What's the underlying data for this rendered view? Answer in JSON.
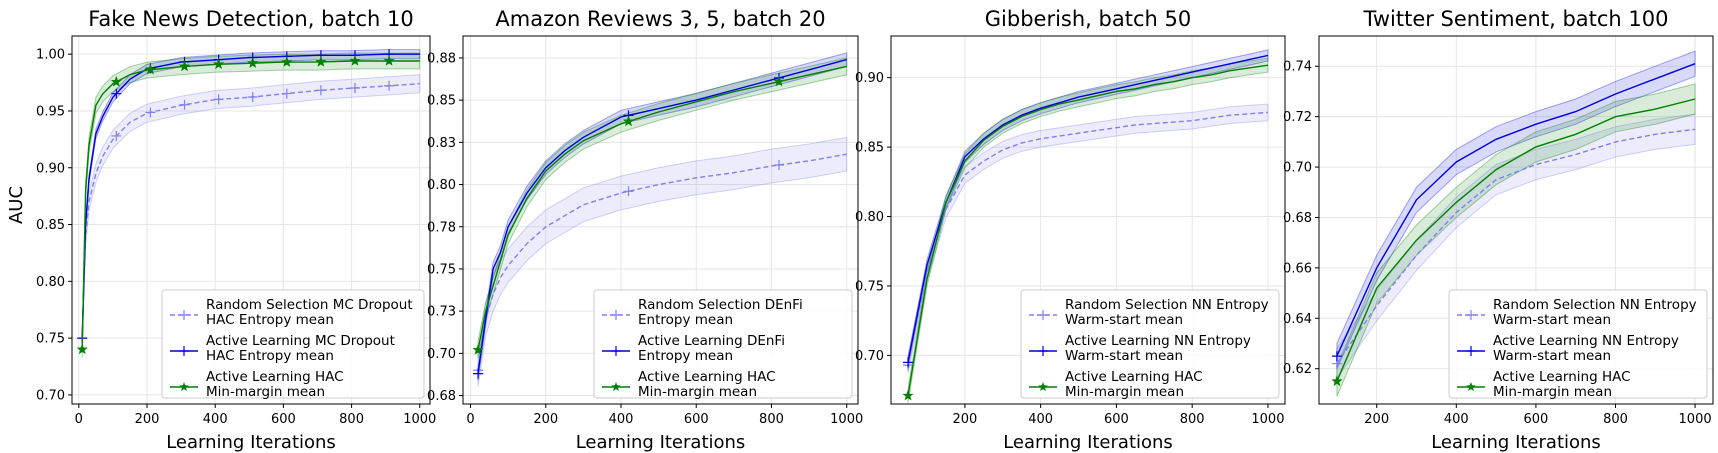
{
  "figure": {
    "ylabel": "AUC"
  },
  "chart_data": [
    {
      "type": "line",
      "title": "Fake News Detection, batch 10",
      "xlabel": "Learning Iterations",
      "ylabel": "AUC",
      "xlim": [
        -20,
        1030
      ],
      "ylim": [
        0.692,
        1.016
      ],
      "xticks": [
        0,
        200,
        400,
        600,
        800,
        1000
      ],
      "yticks": [
        0.7,
        0.75,
        0.8,
        0.85,
        0.9,
        0.95,
        1.0
      ],
      "ytick_labels": [
        "0.70",
        "0.75",
        "0.80",
        "0.85",
        "0.90",
        "0.95",
        "1.00"
      ],
      "grid": true,
      "legend_position": "lower right",
      "series": [
        {
          "name": "Random Selection MC Dropout\nHAC Entropy mean",
          "color": "#8080ee",
          "style": "dashed",
          "marker": "plus",
          "band": 0.008,
          "x": [
            10,
            20,
            30,
            50,
            70,
            100,
            150,
            200,
            300,
            400,
            500,
            600,
            700,
            800,
            900,
            1000
          ],
          "y": [
            0.75,
            0.84,
            0.87,
            0.895,
            0.91,
            0.925,
            0.94,
            0.948,
            0.955,
            0.96,
            0.962,
            0.965,
            0.968,
            0.97,
            0.972,
            0.974
          ],
          "marker_x": [
            10,
            110,
            210,
            310,
            410,
            510,
            610,
            710,
            810,
            910
          ]
        },
        {
          "name": "Active Learning MC Dropout\nHAC Entropy mean",
          "color": "#0000dd",
          "style": "solid",
          "marker": "plus",
          "band": 0.004,
          "x": [
            10,
            20,
            30,
            50,
            70,
            100,
            150,
            200,
            300,
            400,
            500,
            600,
            700,
            800,
            900,
            1000
          ],
          "y": [
            0.75,
            0.85,
            0.89,
            0.93,
            0.945,
            0.962,
            0.978,
            0.987,
            0.993,
            0.995,
            0.997,
            0.998,
            0.999,
            0.999,
            1.0,
            1.0
          ],
          "marker_x": [
            10,
            110,
            210,
            310,
            410,
            510,
            610,
            710,
            810,
            910
          ]
        },
        {
          "name": "Active Learning HAC\nMin-margin mean",
          "color": "#008000",
          "style": "solid",
          "marker": "star",
          "band": 0.007,
          "x": [
            10,
            20,
            30,
            50,
            70,
            100,
            150,
            200,
            300,
            400,
            500,
            600,
            700,
            800,
            900,
            1000
          ],
          "y": [
            0.74,
            0.88,
            0.92,
            0.955,
            0.965,
            0.974,
            0.982,
            0.986,
            0.989,
            0.991,
            0.992,
            0.993,
            0.993,
            0.994,
            0.994,
            0.994
          ],
          "marker_x": [
            10,
            110,
            210,
            310,
            410,
            510,
            610,
            710,
            810,
            910
          ]
        }
      ]
    },
    {
      "type": "line",
      "title": "Amazon Reviews 3, 5, batch 20",
      "xlabel": "Learning Iterations",
      "ylabel": "",
      "xlim": [
        -20,
        1030
      ],
      "ylim": [
        0.67,
        0.888
      ],
      "xticks": [
        0,
        200,
        400,
        600,
        800,
        1000
      ],
      "yticks": [
        0.675,
        0.7,
        0.725,
        0.75,
        0.775,
        0.8,
        0.825,
        0.85,
        0.875
      ],
      "ytick_labels": [
        "0.68",
        "0.70",
        "0.73",
        "0.75",
        "0.78",
        "0.80",
        "0.83",
        "0.85",
        "0.88"
      ],
      "grid": true,
      "legend_position": "lower right",
      "series": [
        {
          "name": "Random Selection DEnFi\nEntropy mean",
          "color": "#8080ee",
          "style": "dashed",
          "marker": "plus",
          "band": 0.01,
          "x": [
            20,
            40,
            60,
            80,
            100,
            150,
            200,
            300,
            400,
            500,
            600,
            700,
            800,
            900,
            1000
          ],
          "y": [
            0.69,
            0.72,
            0.735,
            0.745,
            0.752,
            0.765,
            0.775,
            0.788,
            0.795,
            0.8,
            0.804,
            0.807,
            0.811,
            0.814,
            0.818
          ],
          "marker_x": [
            20,
            420,
            820
          ]
        },
        {
          "name": "Active Learning DEnFi\nEntropy mean",
          "color": "#0000dd",
          "style": "solid",
          "marker": "plus",
          "band": 0.004,
          "x": [
            20,
            40,
            60,
            80,
            100,
            150,
            200,
            250,
            300,
            400,
            500,
            600,
            700,
            800,
            900,
            1000
          ],
          "y": [
            0.688,
            0.72,
            0.75,
            0.76,
            0.775,
            0.795,
            0.81,
            0.82,
            0.828,
            0.84,
            0.845,
            0.85,
            0.856,
            0.862,
            0.868,
            0.874
          ],
          "marker_x": [
            20,
            420,
            820
          ]
        },
        {
          "name": "Active Learning HAC\nMin-margin mean",
          "color": "#008000",
          "style": "solid",
          "marker": "star",
          "band": 0.005,
          "x": [
            20,
            40,
            60,
            80,
            100,
            150,
            200,
            250,
            300,
            400,
            500,
            600,
            700,
            800,
            900,
            1000
          ],
          "y": [
            0.702,
            0.725,
            0.74,
            0.755,
            0.77,
            0.792,
            0.808,
            0.818,
            0.826,
            0.836,
            0.843,
            0.849,
            0.855,
            0.86,
            0.865,
            0.87
          ],
          "marker_x": [
            20,
            420,
            820
          ]
        }
      ]
    },
    {
      "type": "line",
      "title": "Gibberish, batch 50",
      "xlabel": "Learning Iterations",
      "ylabel": "",
      "xlim": [
        5,
        1045
      ],
      "ylim": [
        0.665,
        0.93
      ],
      "xticks": [
        200,
        400,
        600,
        800,
        1000
      ],
      "yticks": [
        0.7,
        0.75,
        0.8,
        0.85,
        0.9
      ],
      "ytick_labels": [
        "0.70",
        "0.75",
        "0.80",
        "0.85",
        "0.90"
      ],
      "grid": true,
      "legend_position": "lower right",
      "series": [
        {
          "name": "Random Selection NN Entropy\nWarm-start mean",
          "color": "#8080ee",
          "style": "dashed",
          "marker": "plus",
          "band": 0.006,
          "x": [
            50,
            100,
            150,
            200,
            250,
            300,
            350,
            400,
            450,
            500,
            550,
            600,
            650,
            700,
            750,
            800,
            850,
            900,
            950,
            1000
          ],
          "y": [
            0.693,
            0.76,
            0.805,
            0.83,
            0.84,
            0.848,
            0.853,
            0.856,
            0.858,
            0.86,
            0.862,
            0.864,
            0.866,
            0.867,
            0.868,
            0.869,
            0.871,
            0.873,
            0.874,
            0.875
          ],
          "marker_x": [
            50
          ]
        },
        {
          "name": "Active Learning NN Entropy\nWarm-start mean",
          "color": "#0000dd",
          "style": "solid",
          "marker": "plus",
          "band": 0.004,
          "x": [
            50,
            100,
            150,
            200,
            250,
            300,
            350,
            400,
            450,
            500,
            550,
            600,
            650,
            700,
            750,
            800,
            850,
            900,
            950,
            1000
          ],
          "y": [
            0.695,
            0.765,
            0.81,
            0.843,
            0.856,
            0.866,
            0.873,
            0.878,
            0.882,
            0.886,
            0.889,
            0.892,
            0.895,
            0.898,
            0.901,
            0.904,
            0.907,
            0.91,
            0.913,
            0.916
          ],
          "marker_x": [
            50
          ]
        },
        {
          "name": "Active Learning HAC\nMin-margin mean",
          "color": "#008000",
          "style": "solid",
          "marker": "star",
          "band": 0.005,
          "x": [
            50,
            100,
            150,
            200,
            250,
            300,
            350,
            400,
            450,
            500,
            550,
            600,
            650,
            700,
            750,
            800,
            850,
            900,
            950,
            1000
          ],
          "y": [
            0.671,
            0.755,
            0.81,
            0.84,
            0.855,
            0.865,
            0.872,
            0.877,
            0.881,
            0.884,
            0.887,
            0.89,
            0.892,
            0.895,
            0.897,
            0.9,
            0.902,
            0.905,
            0.907,
            0.909
          ],
          "marker_x": [
            50
          ]
        }
      ]
    },
    {
      "type": "line",
      "title": "Twitter Sentiment, batch 100",
      "xlabel": "Learning Iterations",
      "ylabel": "",
      "xlim": [
        55,
        1045
      ],
      "ylim": [
        0.606,
        0.752
      ],
      "xticks": [
        200,
        400,
        600,
        800,
        1000
      ],
      "yticks": [
        0.62,
        0.64,
        0.66,
        0.68,
        0.7,
        0.72,
        0.74
      ],
      "ytick_labels": [
        "0.62",
        "0.64",
        "0.66",
        "0.68",
        "0.70",
        "0.72",
        "0.74"
      ],
      "grid": true,
      "legend_position": "lower right",
      "series": [
        {
          "name": "Random Selection NN Entropy\nWarm-start mean",
          "color": "#8080ee",
          "style": "dashed",
          "marker": "plus",
          "band": 0.006,
          "x": [
            100,
            200,
            300,
            400,
            500,
            600,
            700,
            800,
            900,
            1000
          ],
          "y": [
            0.622,
            0.645,
            0.665,
            0.682,
            0.695,
            0.701,
            0.705,
            0.71,
            0.713,
            0.715
          ],
          "marker_x": [
            100
          ]
        },
        {
          "name": "Active Learning NN Entropy\nWarm-start mean",
          "color": "#0000dd",
          "style": "solid",
          "marker": "plus",
          "band": 0.005,
          "x": [
            100,
            200,
            300,
            400,
            500,
            600,
            700,
            800,
            900,
            1000
          ],
          "y": [
            0.625,
            0.66,
            0.687,
            0.702,
            0.711,
            0.717,
            0.722,
            0.729,
            0.735,
            0.741
          ],
          "marker_x": [
            100
          ]
        },
        {
          "name": "Active Learning HAC\nMin-margin mean",
          "color": "#008000",
          "style": "solid",
          "marker": "star",
          "band": 0.006,
          "x": [
            100,
            200,
            300,
            400,
            500,
            600,
            700,
            800,
            900,
            1000
          ],
          "y": [
            0.615,
            0.652,
            0.671,
            0.686,
            0.699,
            0.708,
            0.713,
            0.72,
            0.723,
            0.727
          ],
          "marker_x": [
            100
          ]
        }
      ]
    }
  ]
}
